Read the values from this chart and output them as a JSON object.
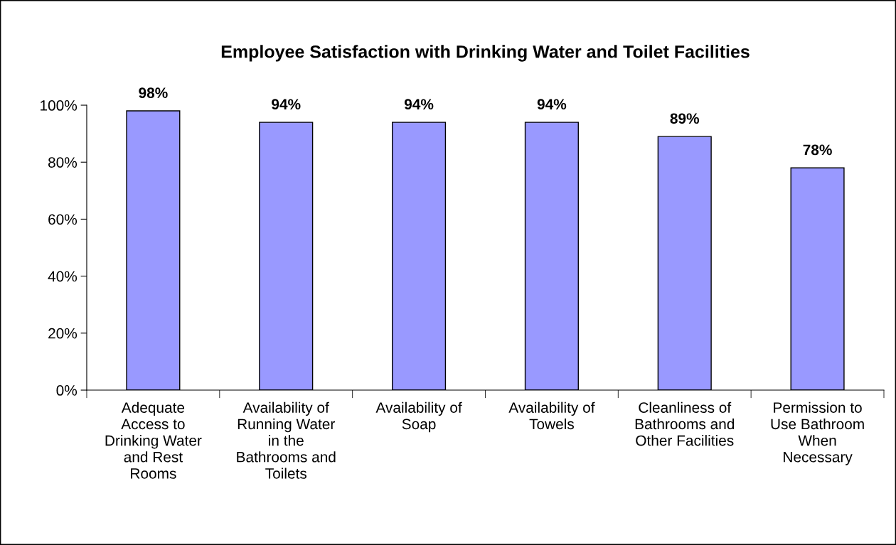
{
  "chart_data": {
    "type": "bar",
    "title": "Employee Satisfaction with Drinking Water and Toilet Facilities",
    "categories": [
      "Adequate\nAccess to\nDrinking Water\nand Rest\nRooms",
      "Availability of\nRunning Water\nin the\nBathrooms and\nToilets",
      "Availability of\nSoap",
      "Availability of\nTowels",
      "Cleanliness of\nBathrooms and\nOther Facilities",
      "Permission to\nUse Bathroom\nWhen\nNecessary"
    ],
    "values": [
      98,
      94,
      94,
      94,
      89,
      78
    ],
    "value_labels": [
      "98%",
      "94%",
      "94%",
      "94%",
      "89%",
      "78%"
    ],
    "color": "#9999ff",
    "grid": false,
    "legend": false,
    "ylim": [
      0,
      100
    ],
    "yticks": [
      {
        "value": 0,
        "label": "0%"
      },
      {
        "value": 20,
        "label": "20%"
      },
      {
        "value": 40,
        "label": "40%"
      },
      {
        "value": 60,
        "label": "60%"
      },
      {
        "value": 80,
        "label": "80%"
      },
      {
        "value": 100,
        "label": "100%"
      }
    ]
  }
}
